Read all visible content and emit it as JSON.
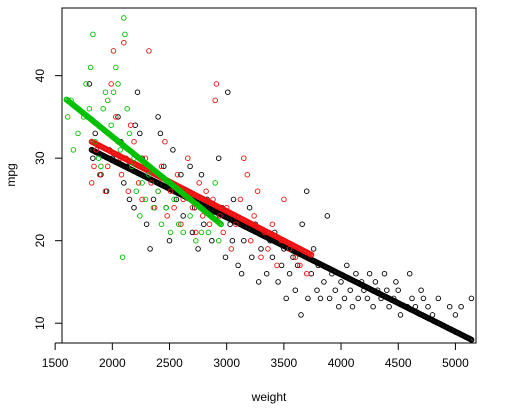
{
  "chart_data": {
    "type": "scatter",
    "title": "",
    "xlabel": "weight",
    "ylabel": "mpg",
    "xlim": [
      1560,
      5180
    ],
    "ylim": [
      7.6,
      48.2
    ],
    "x_ticks": [
      1500,
      2000,
      2500,
      3000,
      3500,
      4000,
      4500,
      5000
    ],
    "x_tick_labels": [
      "1500",
      "2000",
      "2500",
      "3000",
      "3500",
      "4000",
      "4500",
      "5000"
    ],
    "y_ticks": [
      10,
      20,
      30,
      40
    ],
    "y_tick_labels": [
      "10",
      "20",
      "30",
      "40"
    ],
    "grid": false,
    "legend": null,
    "series": [
      {
        "color": "#000000",
        "marker": "open-circle",
        "observed": [
          [
            1800,
            39
          ],
          [
            1830,
            30
          ],
          [
            1850,
            33
          ],
          [
            1900,
            28
          ],
          [
            1950,
            26
          ],
          [
            1975,
            31
          ],
          [
            2000,
            30
          ],
          [
            2050,
            35
          ],
          [
            2075,
            32
          ],
          [
            2100,
            27
          ],
          [
            2130,
            29
          ],
          [
            2150,
            25
          ],
          [
            2190,
            24
          ],
          [
            2200,
            34
          ],
          [
            2220,
            38
          ],
          [
            2240,
            33
          ],
          [
            2260,
            30
          ],
          [
            2300,
            22
          ],
          [
            2330,
            19
          ],
          [
            2360,
            25
          ],
          [
            2380,
            28
          ],
          [
            2400,
            35
          ],
          [
            2420,
            33
          ],
          [
            2450,
            29
          ],
          [
            2470,
            24
          ],
          [
            2500,
            20
          ],
          [
            2510,
            27
          ],
          [
            2530,
            31
          ],
          [
            2560,
            25
          ],
          [
            2600,
            28
          ],
          [
            2620,
            23
          ],
          [
            2650,
            26
          ],
          [
            2680,
            29
          ],
          [
            2700,
            21
          ],
          [
            2720,
            24
          ],
          [
            2750,
            19
          ],
          [
            2780,
            28
          ],
          [
            2800,
            22
          ],
          [
            2830,
            25
          ],
          [
            2870,
            20
          ],
          [
            2900,
            23
          ],
          [
            2930,
            30
          ],
          [
            2960,
            24
          ],
          [
            2990,
            18
          ],
          [
            3010,
            38
          ],
          [
            3030,
            22
          ],
          [
            3050,
            20
          ],
          [
            3060,
            25
          ],
          [
            3100,
            17
          ],
          [
            3130,
            16
          ],
          [
            3150,
            20
          ],
          [
            3180,
            22
          ],
          [
            3200,
            24
          ],
          [
            3220,
            18
          ],
          [
            3250,
            22
          ],
          [
            3280,
            15
          ],
          [
            3300,
            19
          ],
          [
            3320,
            21
          ],
          [
            3350,
            16
          ],
          [
            3380,
            20
          ],
          [
            3400,
            18
          ],
          [
            3420,
            21
          ],
          [
            3450,
            15
          ],
          [
            3480,
            17
          ],
          [
            3500,
            19
          ],
          [
            3520,
            13
          ],
          [
            3550,
            16
          ],
          [
            3580,
            18
          ],
          [
            3600,
            14
          ],
          [
            3620,
            17
          ],
          [
            3650,
            11
          ],
          [
            3660,
            22
          ],
          [
            3700,
            26
          ],
          [
            3710,
            13
          ],
          [
            3740,
            16
          ],
          [
            3760,
            19
          ],
          [
            3790,
            14
          ],
          [
            3800,
            17
          ],
          [
            3820,
            13
          ],
          [
            3850,
            15
          ],
          [
            3880,
            23
          ],
          [
            3900,
            13
          ],
          [
            3920,
            16
          ],
          [
            3950,
            14
          ],
          [
            3980,
            12
          ],
          [
            4000,
            15
          ],
          [
            4030,
            13
          ],
          [
            4050,
            17
          ],
          [
            4080,
            14
          ],
          [
            4100,
            12
          ],
          [
            4130,
            16
          ],
          [
            4150,
            13
          ],
          [
            4180,
            15
          ],
          [
            4200,
            14
          ],
          [
            4230,
            13
          ],
          [
            4250,
            16
          ],
          [
            4280,
            12
          ],
          [
            4300,
            15
          ],
          [
            4320,
            14
          ],
          [
            4350,
            13
          ],
          [
            4380,
            16
          ],
          [
            4400,
            14
          ],
          [
            4420,
            12
          ],
          [
            4460,
            13
          ],
          [
            4480,
            15
          ],
          [
            4500,
            14
          ],
          [
            4520,
            11
          ],
          [
            4580,
            12
          ],
          [
            4600,
            16
          ],
          [
            4620,
            13
          ],
          [
            4650,
            12
          ],
          [
            4700,
            14
          ],
          [
            4720,
            13
          ],
          [
            4760,
            12
          ],
          [
            4800,
            11
          ],
          [
            4850,
            13
          ],
          [
            4950,
            12
          ],
          [
            5000,
            11
          ],
          [
            5050,
            12
          ],
          [
            5140,
            13
          ]
        ],
        "fitted_line": {
          "x_from": 1820,
          "x_to": 5140,
          "y_from": 31.0,
          "y_to": 8.0
        }
      },
      {
        "color": "#ee1111",
        "marker": "open-circle",
        "observed": [
          [
            1820,
            27
          ],
          [
            1840,
            29
          ],
          [
            1860,
            31
          ],
          [
            1890,
            28
          ],
          [
            1940,
            26
          ],
          [
            1960,
            29
          ],
          [
            1990,
            39
          ],
          [
            2010,
            43
          ],
          [
            2030,
            35
          ],
          [
            2050,
            32
          ],
          [
            2070,
            30
          ],
          [
            2080,
            28
          ],
          [
            2100,
            44
          ],
          [
            2120,
            30
          ],
          [
            2140,
            26
          ],
          [
            2160,
            34
          ],
          [
            2190,
            32
          ],
          [
            2230,
            27
          ],
          [
            2260,
            25
          ],
          [
            2290,
            30
          ],
          [
            2320,
            43
          ],
          [
            2340,
            27
          ],
          [
            2370,
            24
          ],
          [
            2400,
            26
          ],
          [
            2430,
            29
          ],
          [
            2460,
            32
          ],
          [
            2480,
            23
          ],
          [
            2510,
            26
          ],
          [
            2540,
            24
          ],
          [
            2570,
            28
          ],
          [
            2600,
            22
          ],
          [
            2620,
            25
          ],
          [
            2660,
            30
          ],
          [
            2700,
            24
          ],
          [
            2730,
            21
          ],
          [
            2760,
            27
          ],
          [
            2790,
            23
          ],
          [
            2820,
            26
          ],
          [
            2850,
            22
          ],
          [
            2880,
            25
          ],
          [
            2900,
            37
          ],
          [
            2910,
            39
          ],
          [
            2940,
            23
          ],
          [
            2970,
            21
          ],
          [
            3000,
            24
          ],
          [
            3040,
            19
          ],
          [
            3080,
            22
          ],
          [
            3120,
            25
          ],
          [
            3150,
            30
          ],
          [
            3180,
            28
          ],
          [
            3210,
            20
          ],
          [
            3240,
            23
          ],
          [
            3270,
            26
          ],
          [
            3300,
            18
          ],
          [
            3330,
            21
          ],
          [
            3360,
            19
          ],
          [
            3400,
            22
          ],
          [
            3440,
            17
          ],
          [
            3480,
            20
          ],
          [
            3500,
            25
          ],
          [
            3550,
            19
          ],
          [
            3600,
            18
          ],
          [
            3640,
            17
          ],
          [
            3700,
            16
          ]
        ],
        "fitted_line": {
          "x_from": 1820,
          "x_to": 3740,
          "y_from": 32.0,
          "y_to": 18.3
        }
      },
      {
        "color": "#00c000",
        "marker": "open-circle",
        "observed": [
          [
            1610,
            35
          ],
          [
            1640,
            37
          ],
          [
            1660,
            31
          ],
          [
            1700,
            33
          ],
          [
            1750,
            35
          ],
          [
            1770,
            39
          ],
          [
            1800,
            36
          ],
          [
            1810,
            41
          ],
          [
            1830,
            45
          ],
          [
            1850,
            32
          ],
          [
            1880,
            30
          ],
          [
            1900,
            29
          ],
          [
            1920,
            36
          ],
          [
            1940,
            38
          ],
          [
            1960,
            37
          ],
          [
            1990,
            34
          ],
          [
            2010,
            38
          ],
          [
            2030,
            41
          ],
          [
            2050,
            39
          ],
          [
            2070,
            31
          ],
          [
            2100,
            47
          ],
          [
            2110,
            45
          ],
          [
            2130,
            36
          ],
          [
            2150,
            33
          ],
          [
            2170,
            29
          ],
          [
            2190,
            30
          ],
          [
            2210,
            26
          ],
          [
            2240,
            23
          ],
          [
            2260,
            27
          ],
          [
            2290,
            25
          ],
          [
            2320,
            28
          ],
          [
            2360,
            24
          ],
          [
            2400,
            26
          ],
          [
            2430,
            22
          ],
          [
            2470,
            24
          ],
          [
            2510,
            21
          ],
          [
            2540,
            25
          ],
          [
            2580,
            22
          ],
          [
            2620,
            21
          ],
          [
            2680,
            23
          ],
          [
            2730,
            20
          ],
          [
            2780,
            21
          ],
          [
            2840,
            21
          ],
          [
            2900,
            27
          ],
          [
            2930,
            20
          ],
          [
            2090,
            18
          ]
        ],
        "fitted_line": {
          "x_from": 1600,
          "x_to": 2950,
          "y_from": 37.1,
          "y_to": 22.0
        }
      }
    ]
  }
}
